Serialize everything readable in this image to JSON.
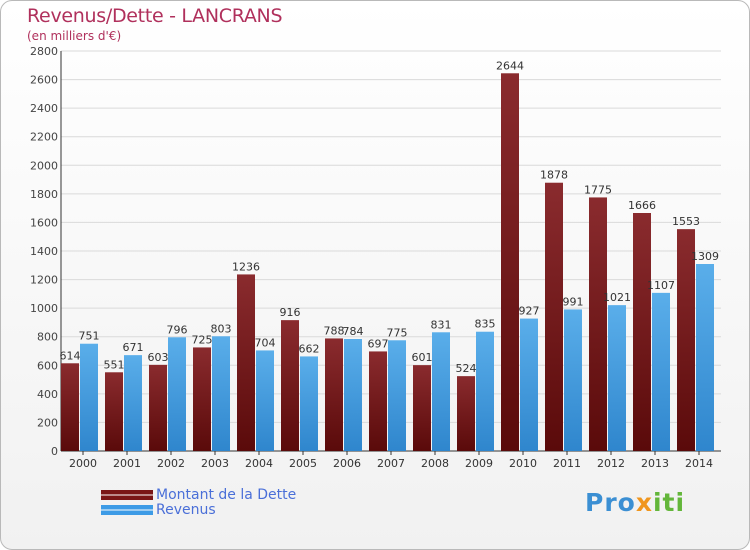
{
  "header": {
    "title": "Revenus/Dette - LANCRANS",
    "subtitle": "(en milliers d'€)"
  },
  "legend": {
    "items": [
      {
        "label": "Montant de la Dette",
        "color": "#7a1616"
      },
      {
        "label": "Revenus",
        "color": "#3d9be6"
      }
    ]
  },
  "logo": {
    "part1": "Pro",
    "part2": "x",
    "part3": "iti"
  },
  "chart_data": {
    "type": "bar",
    "title": "Revenus/Dette - LANCRANS",
    "subtitle": "(en milliers d'€)",
    "categories": [
      "2000",
      "2001",
      "2002",
      "2003",
      "2004",
      "2005",
      "2006",
      "2007",
      "2008",
      "2009",
      "2010",
      "2011",
      "2012",
      "2013",
      "2014"
    ],
    "series": [
      {
        "name": "Montant de la Dette",
        "color": "#7a1616",
        "values": [
          614,
          551,
          603,
          725,
          1236,
          916,
          788,
          697,
          601,
          524,
          2644,
          1878,
          1775,
          1666,
          1553
        ]
      },
      {
        "name": "Revenus",
        "color": "#3d9be6",
        "values": [
          751,
          671,
          796,
          803,
          704,
          662,
          784,
          775,
          831,
          835,
          927,
          991,
          1021,
          1107,
          1309
        ]
      }
    ],
    "ylim": [
      0,
      2800
    ],
    "yticks": [
      0,
      200,
      400,
      600,
      800,
      1000,
      1200,
      1400,
      1600,
      1800,
      2000,
      2200,
      2400,
      2600,
      2800
    ],
    "grid": true,
    "legend_position": "bottom-left"
  }
}
